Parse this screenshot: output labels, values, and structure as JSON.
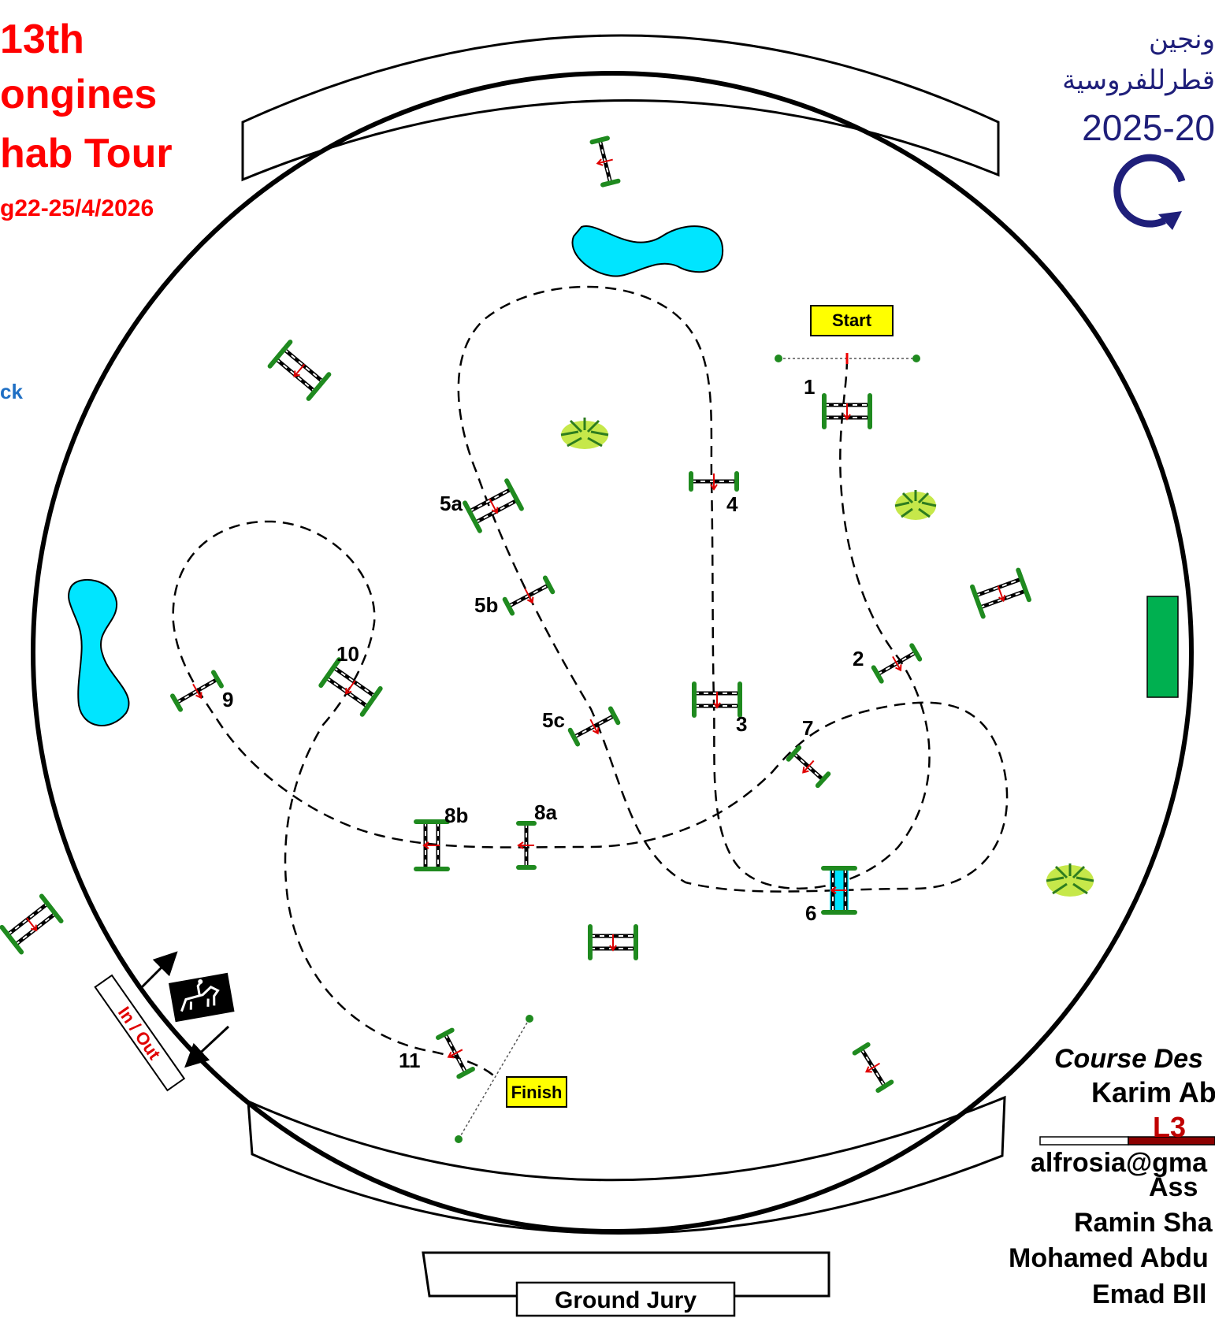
{
  "event": {
    "title_line1": "13th",
    "title_line2": "ongines",
    "title_line3": "hab Tour",
    "dates": "g22-25/4/2026",
    "left_fragment": "ck"
  },
  "logo": {
    "arabic_line1": "ونجين",
    "arabic_line2": "قطرللفروسية",
    "season": "2025-20"
  },
  "course": {
    "start_label": "Start",
    "finish_label": "Finish",
    "in_out_label": "In / Out",
    "ground_jury_label": "Ground Jury",
    "obstacles": [
      "1",
      "2",
      "3",
      "4",
      "5a",
      "5b",
      "5c",
      "6",
      "7",
      "8a",
      "8b",
      "9",
      "10",
      "11"
    ]
  },
  "designer": {
    "heading": "Course Des",
    "name": "Karim Ab",
    "level": "L3",
    "email": "alfrosia@gma",
    "assistant_label": "Ass",
    "assistants": [
      "Ramin Sha",
      "Mohamed Abdu",
      "Emad BIl"
    ]
  },
  "colors": {
    "title": "#ff0000",
    "pole_green": "#1f8a1f",
    "water": "#00e5ff",
    "path_dashes": "#000000",
    "start_finish_bg": "#ffff00",
    "green_rect": "#00b050",
    "level_red": "#c00000"
  }
}
